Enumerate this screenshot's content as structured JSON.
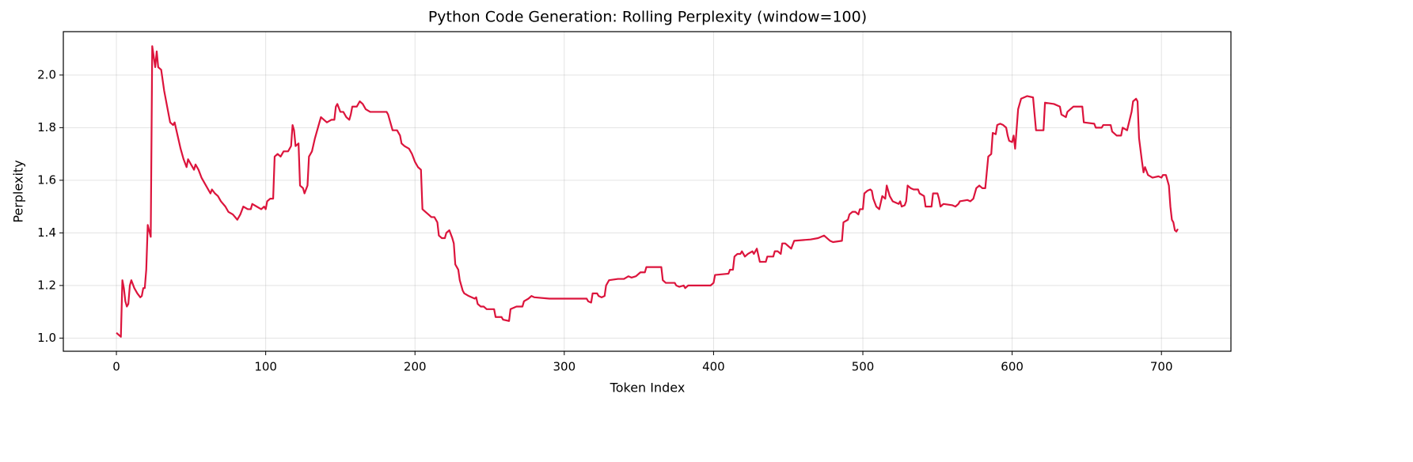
{
  "chart_data": {
    "type": "line",
    "title": "Python Code Generation: Rolling Perplexity (window=100)",
    "xlabel": "Token Index",
    "ylabel": "Perplexity",
    "color": "#dc143c",
    "grid": true,
    "xlim": [
      -35.55,
      746.55
    ],
    "ylim": [
      0.95,
      2.165
    ],
    "xticks": [
      0,
      100,
      200,
      300,
      400,
      500,
      600,
      700
    ],
    "yticks": [
      {
        "value": 1,
        "label": "1.0"
      },
      1.2,
      1.4,
      1.6,
      1.8,
      {
        "value": 2,
        "label": "2.0"
      }
    ],
    "x": [
      0,
      2,
      3,
      4,
      5,
      6,
      7,
      8,
      9,
      10,
      12,
      14,
      16,
      17,
      18,
      19,
      20,
      21,
      23,
      24,
      25,
      26,
      27,
      28,
      30,
      32,
      34,
      36,
      38,
      39,
      41,
      43,
      45,
      47,
      48,
      50,
      52,
      53,
      55,
      57,
      60,
      63,
      64,
      66,
      68,
      70,
      73,
      75,
      78,
      81,
      83,
      85,
      88,
      90,
      91,
      94,
      97,
      99,
      100,
      101,
      103,
      105,
      106,
      108,
      110,
      112,
      115,
      117,
      118,
      119,
      120,
      122,
      123,
      125,
      126,
      128,
      129,
      131,
      133,
      134,
      136,
      137,
      139,
      141,
      144,
      146,
      147,
      148,
      150,
      152,
      154,
      156,
      157,
      158,
      161,
      163,
      165,
      167,
      170,
      175,
      178,
      181,
      182,
      185,
      188,
      190,
      191,
      193,
      196,
      198,
      200,
      202,
      204,
      205,
      207,
      209,
      211,
      213,
      215,
      216,
      218,
      220,
      221,
      223,
      225,
      226,
      227,
      228,
      229,
      230,
      232,
      233,
      236,
      240,
      241,
      242,
      244,
      246,
      248,
      253,
      254,
      258,
      259,
      263,
      264,
      266,
      268,
      272,
      273,
      276,
      278,
      280,
      290,
      315,
      316,
      318,
      319,
      322,
      323,
      325,
      327,
      328,
      330,
      336,
      340,
      343,
      345,
      348,
      351,
      354,
      355,
      365,
      366,
      368,
      374,
      375,
      377,
      380,
      381,
      383,
      398,
      400,
      401,
      410,
      411,
      413,
      414,
      416,
      418,
      419,
      421,
      423,
      426,
      427,
      429,
      431,
      435,
      436,
      440,
      441,
      443,
      445,
      446,
      448,
      450,
      452,
      454,
      465,
      470,
      474,
      476,
      478,
      480,
      486,
      487,
      490,
      491,
      493,
      495,
      497,
      498,
      500,
      501,
      503,
      505,
      506,
      507,
      509,
      511,
      513,
      515,
      516,
      518,
      520,
      524,
      525,
      526,
      528,
      529,
      530,
      532,
      534,
      537,
      538,
      541,
      542,
      546,
      547,
      550,
      551,
      552,
      554,
      560,
      562,
      564,
      565,
      570,
      572,
      574,
      576,
      578,
      580,
      582,
      583,
      584,
      586,
      587,
      589,
      590,
      592,
      594,
      596,
      597,
      598,
      600,
      601,
      602,
      604,
      606,
      610,
      614,
      616,
      621,
      622,
      628,
      632,
      633,
      636,
      637,
      639,
      641,
      647,
      648,
      655,
      656,
      660,
      661,
      666,
      667,
      670,
      673,
      674,
      677,
      680,
      681,
      683,
      684,
      685,
      687,
      688,
      689,
      691,
      694,
      698,
      700,
      701,
      703,
      705,
      706,
      707,
      708,
      709,
      710,
      711
    ],
    "values": [
      1.02,
      1.01,
      1.005,
      1.22,
      1.19,
      1.14,
      1.12,
      1.13,
      1.2,
      1.22,
      1.19,
      1.17,
      1.155,
      1.16,
      1.19,
      1.19,
      1.26,
      1.43,
      1.385,
      2.11,
      2.07,
      2.03,
      2.09,
      2.03,
      2.02,
      1.94,
      1.88,
      1.82,
      1.81,
      1.82,
      1.77,
      1.72,
      1.68,
      1.65,
      1.68,
      1.66,
      1.64,
      1.66,
      1.64,
      1.61,
      1.58,
      1.55,
      1.565,
      1.55,
      1.54,
      1.52,
      1.5,
      1.48,
      1.47,
      1.45,
      1.47,
      1.5,
      1.49,
      1.49,
      1.51,
      1.5,
      1.49,
      1.5,
      1.49,
      1.52,
      1.53,
      1.53,
      1.69,
      1.7,
      1.69,
      1.71,
      1.71,
      1.73,
      1.81,
      1.79,
      1.73,
      1.74,
      1.58,
      1.57,
      1.55,
      1.58,
      1.69,
      1.71,
      1.76,
      1.78,
      1.82,
      1.84,
      1.83,
      1.82,
      1.83,
      1.83,
      1.88,
      1.89,
      1.86,
      1.86,
      1.84,
      1.83,
      1.85,
      1.88,
      1.88,
      1.9,
      1.89,
      1.87,
      1.86,
      1.86,
      1.86,
      1.86,
      1.85,
      1.79,
      1.79,
      1.77,
      1.74,
      1.73,
      1.72,
      1.7,
      1.67,
      1.65,
      1.64,
      1.49,
      1.48,
      1.47,
      1.46,
      1.46,
      1.44,
      1.39,
      1.38,
      1.38,
      1.4,
      1.41,
      1.38,
      1.36,
      1.28,
      1.27,
      1.26,
      1.22,
      1.18,
      1.17,
      1.16,
      1.15,
      1.155,
      1.13,
      1.12,
      1.12,
      1.11,
      1.11,
      1.08,
      1.08,
      1.07,
      1.065,
      1.11,
      1.115,
      1.12,
      1.12,
      1.14,
      1.15,
      1.16,
      1.155,
      1.15,
      1.15,
      1.14,
      1.135,
      1.17,
      1.17,
      1.16,
      1.155,
      1.16,
      1.2,
      1.22,
      1.225,
      1.225,
      1.235,
      1.23,
      1.235,
      1.25,
      1.25,
      1.27,
      1.27,
      1.22,
      1.21,
      1.21,
      1.2,
      1.195,
      1.2,
      1.19,
      1.2,
      1.2,
      1.21,
      1.24,
      1.245,
      1.26,
      1.26,
      1.31,
      1.32,
      1.32,
      1.33,
      1.31,
      1.32,
      1.33,
      1.32,
      1.34,
      1.29,
      1.29,
      1.31,
      1.31,
      1.33,
      1.33,
      1.32,
      1.36,
      1.36,
      1.35,
      1.34,
      1.37,
      1.375,
      1.38,
      1.39,
      1.38,
      1.37,
      1.365,
      1.37,
      1.44,
      1.45,
      1.47,
      1.48,
      1.48,
      1.47,
      1.49,
      1.49,
      1.55,
      1.56,
      1.565,
      1.56,
      1.53,
      1.5,
      1.49,
      1.54,
      1.53,
      1.58,
      1.54,
      1.52,
      1.51,
      1.52,
      1.5,
      1.505,
      1.52,
      1.58,
      1.57,
      1.565,
      1.565,
      1.55,
      1.54,
      1.5,
      1.5,
      1.55,
      1.55,
      1.53,
      1.5,
      1.51,
      1.505,
      1.5,
      1.51,
      1.52,
      1.525,
      1.52,
      1.53,
      1.57,
      1.58,
      1.57,
      1.57,
      1.63,
      1.69,
      1.7,
      1.78,
      1.775,
      1.81,
      1.815,
      1.81,
      1.8,
      1.77,
      1.75,
      1.745,
      1.77,
      1.72,
      1.87,
      1.91,
      1.92,
      1.915,
      1.79,
      1.79,
      1.895,
      1.89,
      1.88,
      1.85,
      1.84,
      1.86,
      1.87,
      1.88,
      1.88,
      1.82,
      1.815,
      1.8,
      1.8,
      1.81,
      1.81,
      1.785,
      1.77,
      1.77,
      1.8,
      1.79,
      1.86,
      1.9,
      1.91,
      1.9,
      1.76,
      1.67,
      1.63,
      1.65,
      1.62,
      1.61,
      1.615,
      1.61,
      1.62,
      1.62,
      1.58,
      1.5,
      1.45,
      1.44,
      1.41,
      1.405,
      1.415
    ]
  }
}
